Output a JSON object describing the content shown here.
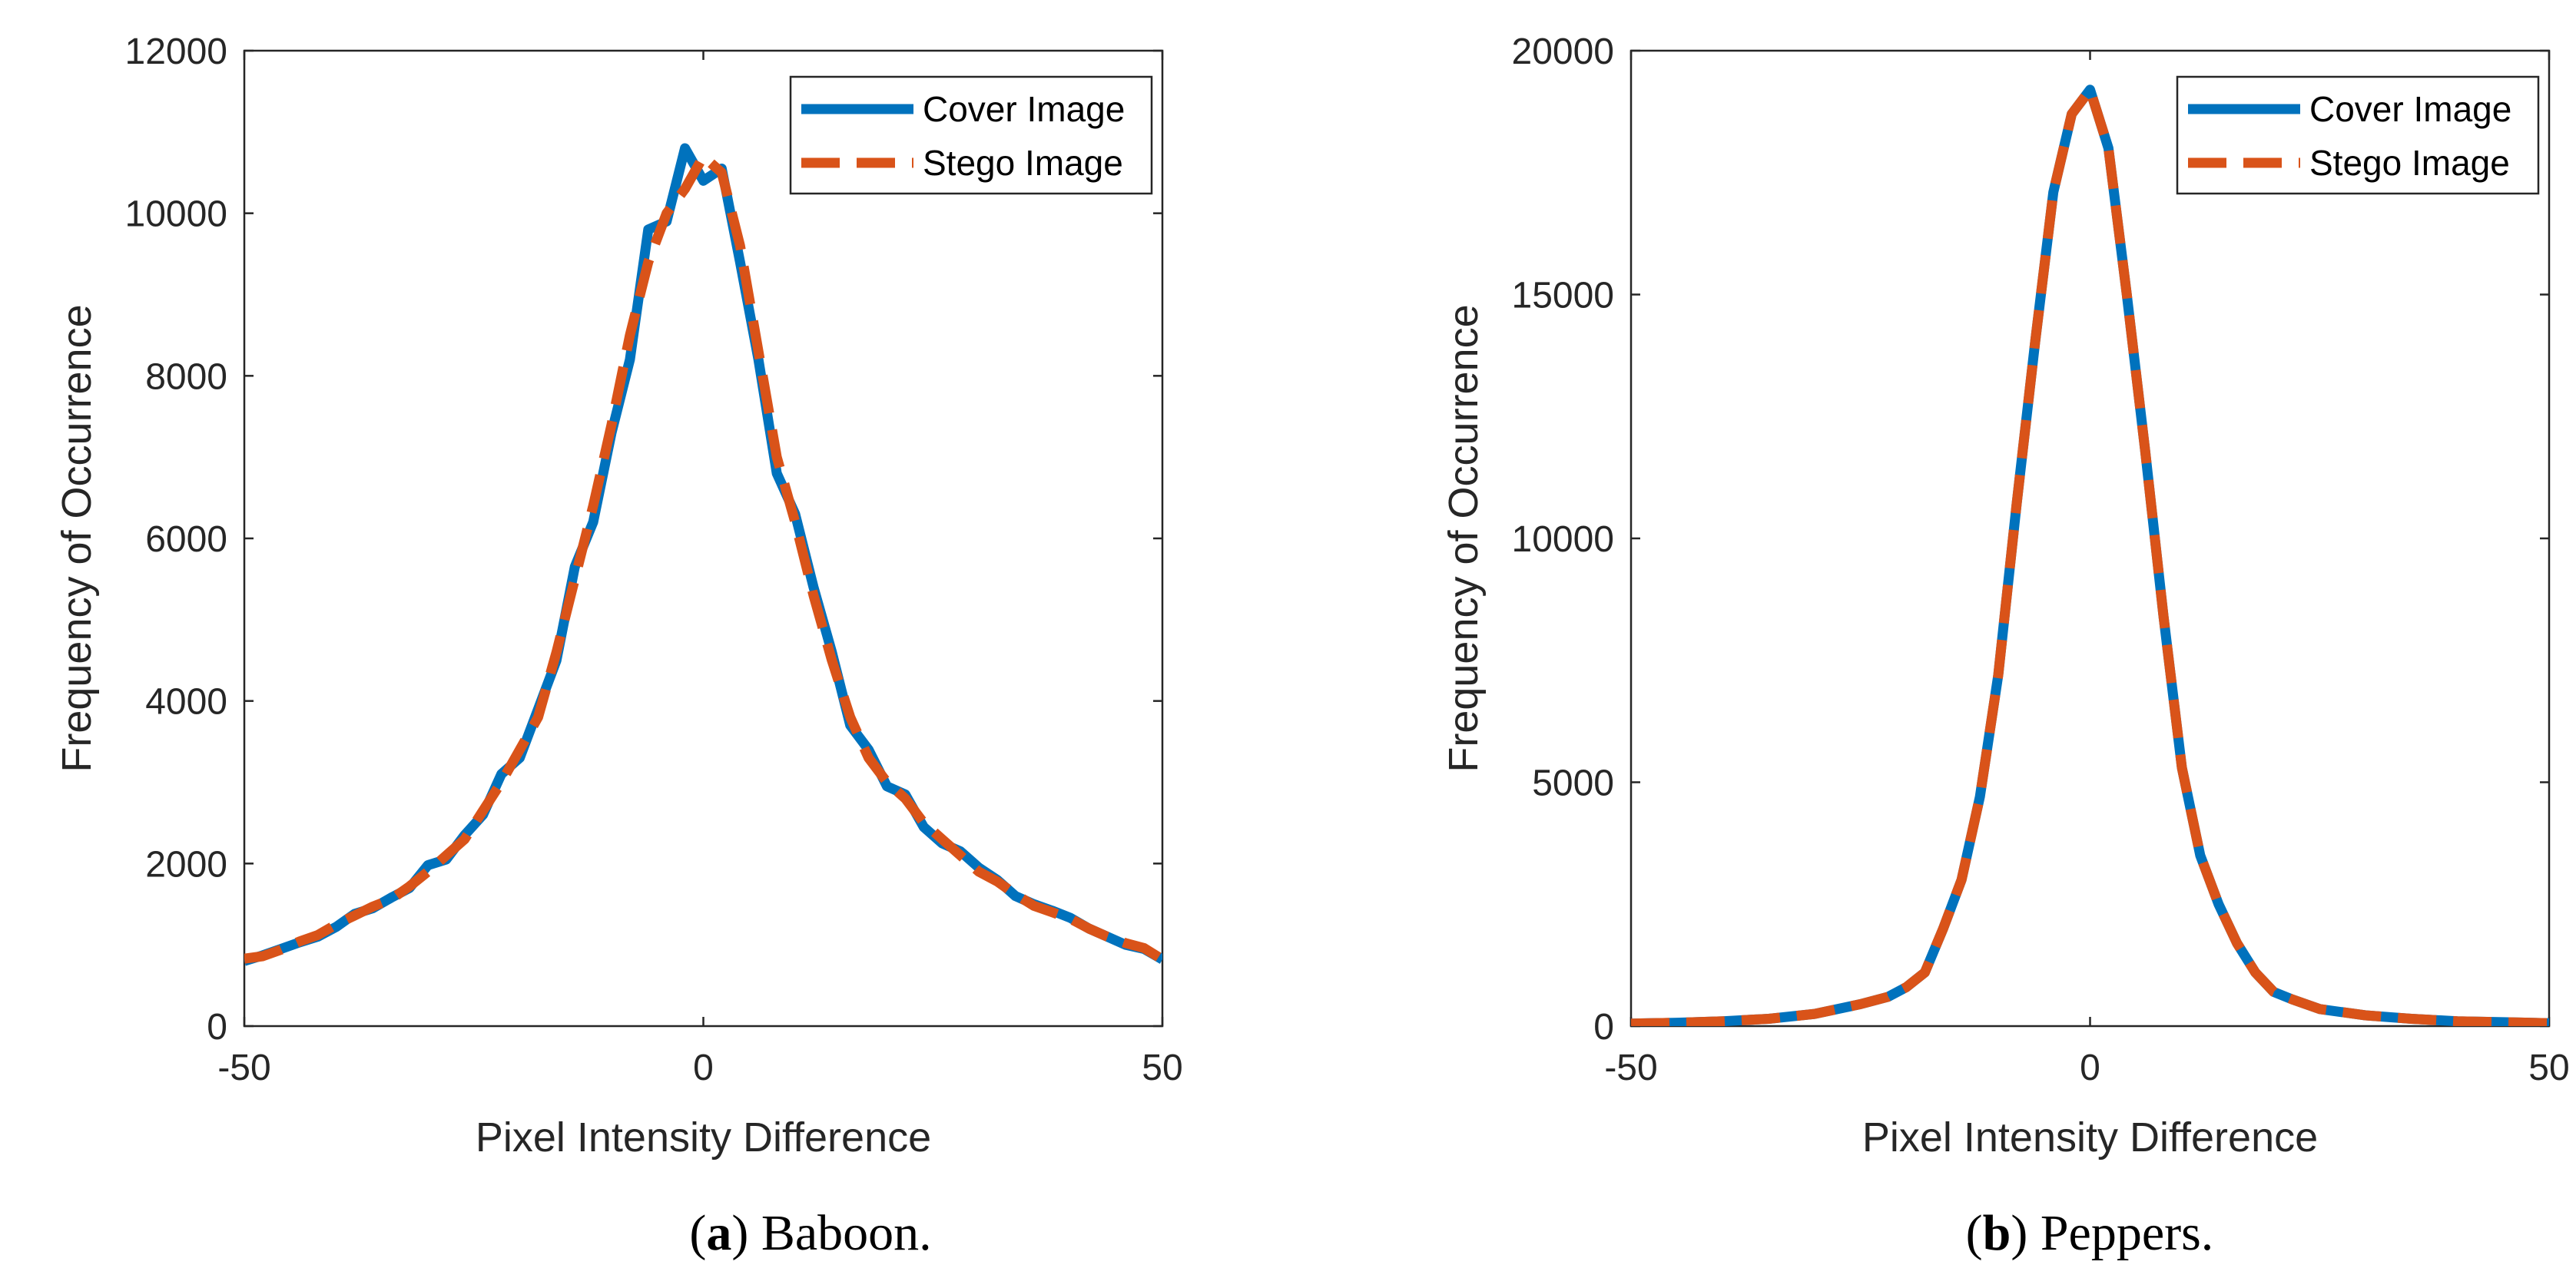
{
  "colors": {
    "cover": "#0072BD",
    "stego": "#D95319",
    "axis": "#262626"
  },
  "chart_data": [
    {
      "type": "line",
      "caption": {
        "open": "(",
        "letter": "a",
        "rest": ") Baboon."
      },
      "xlabel": "Pixel Intensity Difference",
      "ylabel": "Frequency of Occurrence",
      "xlim": [
        -50,
        50
      ],
      "ylim": [
        0,
        12000
      ],
      "xticks": [
        -50,
        0,
        50
      ],
      "yticks": [
        0,
        2000,
        4000,
        6000,
        8000,
        10000,
        12000
      ],
      "grid": false,
      "legend_position": "top-right",
      "x": [
        -50,
        -48,
        -46,
        -44,
        -42,
        -40,
        -38,
        -36,
        -34,
        -32,
        -30,
        -28,
        -26,
        -24,
        -22,
        -20,
        -18,
        -16,
        -14,
        -12,
        -10,
        -8,
        -6,
        -4,
        -2,
        0,
        2,
        4,
        6,
        8,
        10,
        12,
        14,
        16,
        18,
        20,
        22,
        24,
        26,
        28,
        30,
        32,
        34,
        36,
        38,
        40,
        42,
        44,
        46,
        48,
        50
      ],
      "series": [
        {
          "name": "Cover Image",
          "style": "solid",
          "values": [
            800,
            870,
            950,
            1030,
            1100,
            1220,
            1380,
            1450,
            1580,
            1700,
            1980,
            2050,
            2350,
            2600,
            3100,
            3300,
            3900,
            4500,
            5650,
            6200,
            7300,
            8200,
            9800,
            9900,
            10800,
            10400,
            10550,
            9400,
            8200,
            6800,
            6300,
            5400,
            4600,
            3700,
            3400,
            2950,
            2850,
            2450,
            2250,
            2150,
            1950,
            1800,
            1600,
            1500,
            1420,
            1330,
            1200,
            1100,
            1000,
            950,
            820
          ]
        },
        {
          "name": "Stego Image",
          "style": "dashed",
          "values": [
            830,
            860,
            940,
            1040,
            1120,
            1250,
            1360,
            1470,
            1560,
            1720,
            1900,
            2100,
            2300,
            2650,
            3000,
            3400,
            3800,
            4600,
            5500,
            6400,
            7400,
            8500,
            9400,
            10000,
            10300,
            10700,
            10500,
            9600,
            8300,
            7000,
            6200,
            5300,
            4500,
            3800,
            3300,
            3000,
            2800,
            2500,
            2300,
            2100,
            1900,
            1780,
            1620,
            1480,
            1400,
            1320,
            1200,
            1100,
            1020,
            960,
            820
          ]
        }
      ]
    },
    {
      "type": "line",
      "caption": {
        "open": "(",
        "letter": "b",
        "rest": ") Peppers."
      },
      "xlabel": "Pixel Intensity Difference",
      "ylabel": "Frequency of Occurrence",
      "xlim": [
        -50,
        50
      ],
      "ylim": [
        0,
        20000
      ],
      "xticks": [
        -50,
        0,
        50
      ],
      "yticks": [
        0,
        5000,
        10000,
        15000,
        20000
      ],
      "grid": false,
      "legend_position": "top-right",
      "x": [
        -50,
        -45,
        -40,
        -35,
        -30,
        -25,
        -22,
        -20,
        -18,
        -16,
        -14,
        -12,
        -10,
        -8,
        -6,
        -4,
        -2,
        0,
        2,
        4,
        6,
        8,
        10,
        12,
        14,
        16,
        18,
        20,
        22,
        25,
        30,
        35,
        40,
        45,
        50
      ],
      "series": [
        {
          "name": "Cover Image",
          "style": "solid",
          "values": [
            50,
            70,
            100,
            150,
            250,
            450,
            600,
            800,
            1100,
            2000,
            3000,
            4700,
            7200,
            10700,
            14000,
            17100,
            18700,
            19200,
            18000,
            15000,
            11800,
            8400,
            5300,
            3500,
            2500,
            1700,
            1100,
            700,
            550,
            350,
            220,
            150,
            100,
            80,
            60
          ]
        },
        {
          "name": "Stego Image",
          "style": "dashed",
          "values": [
            50,
            70,
            100,
            150,
            250,
            450,
            600,
            800,
            1100,
            2000,
            3000,
            4700,
            7200,
            10700,
            14000,
            17100,
            18700,
            19200,
            18000,
            15000,
            11800,
            8400,
            5300,
            3500,
            2500,
            1700,
            1100,
            700,
            550,
            350,
            220,
            150,
            100,
            80,
            60
          ]
        }
      ]
    }
  ]
}
